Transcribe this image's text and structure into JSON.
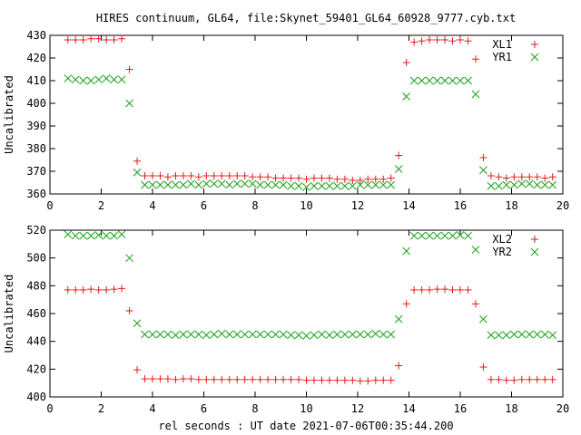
{
  "figure": {
    "title": "HIRES continuum, GL64, file:Skynet_59401_GL64_60928_9777.cyb.txt",
    "xlabel": "rel seconds : UT date 2021-07-06T00:35:44.200"
  },
  "colors": {
    "red": "#e41a1c",
    "green": "#1aa31a"
  },
  "chart_data": [
    {
      "type": "scatter",
      "ylabel": "Uncalibrated",
      "xlim": [
        0,
        20
      ],
      "ylim": [
        360,
        430
      ],
      "xticks": [
        0,
        2,
        4,
        6,
        8,
        10,
        12,
        14,
        16,
        18,
        20
      ],
      "yticks": [
        360,
        370,
        380,
        390,
        400,
        410,
        420,
        430
      ],
      "legend_position": "top-right",
      "series": [
        {
          "name": "XL1",
          "marker": "plus",
          "color": "#e41a1c",
          "x": [
            0.7,
            1.0,
            1.3,
            1.6,
            1.9,
            2.2,
            2.5,
            2.8,
            3.1,
            3.4,
            3.7,
            4.0,
            4.3,
            4.6,
            4.9,
            5.2,
            5.5,
            5.8,
            6.1,
            6.4,
            6.7,
            7.0,
            7.3,
            7.6,
            7.9,
            8.2,
            8.5,
            8.8,
            9.1,
            9.4,
            9.7,
            10.0,
            10.3,
            10.6,
            10.9,
            11.2,
            11.5,
            11.8,
            12.1,
            12.4,
            12.7,
            13.0,
            13.3,
            13.6,
            13.9,
            14.2,
            14.5,
            14.8,
            15.1,
            15.4,
            15.7,
            16.0,
            16.3,
            16.6,
            16.9,
            17.2,
            17.5,
            17.8,
            18.1,
            18.4,
            18.7,
            19.0,
            19.3,
            19.6
          ],
          "y": [
            428,
            428,
            428,
            428.5,
            428.5,
            428,
            428,
            428.5,
            415,
            374.5,
            368,
            368,
            368,
            367.5,
            368,
            368,
            368,
            367.5,
            368,
            368,
            368,
            368,
            368,
            368,
            367.5,
            367.5,
            367.5,
            367,
            367,
            367,
            367,
            366.5,
            367,
            367,
            367,
            366.5,
            366.5,
            366,
            366,
            366.5,
            366.5,
            366.5,
            367,
            377,
            418,
            427,
            427.5,
            428,
            428,
            428,
            427.5,
            428,
            427.5,
            419.5,
            376,
            368,
            367.5,
            367,
            367.5,
            367.5,
            367.5,
            367.5,
            367,
            367.5
          ]
        },
        {
          "name": "YR1",
          "marker": "cross",
          "color": "#1aa31a",
          "x": [
            0.7,
            1.0,
            1.3,
            1.6,
            1.9,
            2.2,
            2.5,
            2.8,
            3.1,
            3.4,
            3.7,
            4.0,
            4.3,
            4.6,
            4.9,
            5.2,
            5.5,
            5.8,
            6.1,
            6.4,
            6.7,
            7.0,
            7.3,
            7.6,
            7.9,
            8.2,
            8.5,
            8.8,
            9.1,
            9.4,
            9.7,
            10.0,
            10.3,
            10.6,
            10.9,
            11.2,
            11.5,
            11.8,
            12.1,
            12.4,
            12.7,
            13.0,
            13.3,
            13.6,
            13.9,
            14.2,
            14.5,
            14.8,
            15.1,
            15.4,
            15.7,
            16.0,
            16.3,
            16.6,
            16.9,
            17.2,
            17.5,
            17.8,
            18.1,
            18.4,
            18.7,
            19.0,
            19.3,
            19.6
          ],
          "y": [
            411,
            410.5,
            410,
            410,
            410.5,
            411,
            410.5,
            410.5,
            400,
            369.5,
            364,
            364,
            364,
            364,
            364,
            364,
            364.5,
            364,
            364.5,
            364.5,
            364.5,
            364,
            364.5,
            364.5,
            364.5,
            364,
            364,
            364,
            364,
            363.5,
            363.5,
            363,
            363.5,
            363.5,
            363.5,
            363.5,
            363.5,
            363.5,
            364,
            364,
            364,
            364,
            364,
            371,
            403,
            410,
            410,
            410,
            410,
            410,
            410,
            410,
            410,
            404,
            370.5,
            363.5,
            363.5,
            364,
            364,
            364.5,
            364.5,
            364,
            364,
            364
          ]
        }
      ]
    },
    {
      "type": "scatter",
      "ylabel": "Uncalibrated",
      "xlim": [
        0,
        20
      ],
      "ylim": [
        400,
        520
      ],
      "xticks": [
        0,
        2,
        4,
        6,
        8,
        10,
        12,
        14,
        16,
        18,
        20
      ],
      "yticks": [
        400,
        420,
        440,
        460,
        480,
        500,
        520
      ],
      "legend_position": "top-right",
      "series": [
        {
          "name": "XL2",
          "marker": "plus",
          "color": "#e41a1c",
          "x": [
            0.7,
            1.0,
            1.3,
            1.6,
            1.9,
            2.2,
            2.5,
            2.8,
            3.1,
            3.4,
            3.7,
            4.0,
            4.3,
            4.6,
            4.9,
            5.2,
            5.5,
            5.8,
            6.1,
            6.4,
            6.7,
            7.0,
            7.3,
            7.6,
            7.9,
            8.2,
            8.5,
            8.8,
            9.1,
            9.4,
            9.7,
            10.0,
            10.3,
            10.6,
            10.9,
            11.2,
            11.5,
            11.8,
            12.1,
            12.4,
            12.7,
            13.0,
            13.3,
            13.6,
            13.9,
            14.2,
            14.5,
            14.8,
            15.1,
            15.4,
            15.7,
            16.0,
            16.3,
            16.6,
            16.9,
            17.2,
            17.5,
            17.8,
            18.1,
            18.4,
            18.7,
            19.0,
            19.3,
            19.6
          ],
          "y": [
            477,
            477,
            477,
            477.5,
            477,
            477,
            477.5,
            478,
            462,
            419.5,
            413,
            413,
            413,
            413,
            412.5,
            413,
            413,
            412.5,
            412.5,
            412.5,
            412.5,
            412.5,
            412.5,
            412.5,
            412.5,
            412.5,
            412.5,
            412.5,
            412.5,
            412.5,
            412.5,
            412,
            412,
            412,
            412,
            412,
            412,
            412,
            411.5,
            411.5,
            412,
            412,
            412,
            422.5,
            467,
            477,
            477,
            477,
            477.5,
            477.5,
            477,
            477,
            477,
            467,
            421.5,
            412.5,
            412.5,
            412,
            412,
            412.5,
            412.5,
            412.5,
            412.5,
            412.5
          ]
        },
        {
          "name": "YR2",
          "marker": "cross",
          "color": "#1aa31a",
          "x": [
            0.7,
            1.0,
            1.3,
            1.6,
            1.9,
            2.2,
            2.5,
            2.8,
            3.1,
            3.4,
            3.7,
            4.0,
            4.3,
            4.6,
            4.9,
            5.2,
            5.5,
            5.8,
            6.1,
            6.4,
            6.7,
            7.0,
            7.3,
            7.6,
            7.9,
            8.2,
            8.5,
            8.8,
            9.1,
            9.4,
            9.7,
            10.0,
            10.3,
            10.6,
            10.9,
            11.2,
            11.5,
            11.8,
            12.1,
            12.4,
            12.7,
            13.0,
            13.3,
            13.6,
            13.9,
            14.2,
            14.5,
            14.8,
            15.1,
            15.4,
            15.7,
            16.0,
            16.3,
            16.6,
            16.9,
            17.2,
            17.5,
            17.8,
            18.1,
            18.4,
            18.7,
            19.0,
            19.3,
            19.6
          ],
          "y": [
            517,
            516,
            516,
            516,
            516.5,
            516,
            516,
            517,
            500,
            453,
            445,
            445,
            445,
            445,
            444.5,
            445,
            445,
            445,
            444.5,
            445,
            445.5,
            445,
            445,
            445,
            445,
            445,
            445,
            445,
            445,
            444.5,
            444.5,
            444,
            444.5,
            445,
            444.5,
            445,
            445,
            445,
            445,
            445,
            445.5,
            445,
            445,
            456,
            505,
            516,
            516,
            516,
            516,
            516,
            516,
            516.5,
            516,
            506,
            456,
            444.5,
            444.5,
            444.5,
            445,
            445,
            445,
            445,
            445,
            444.5
          ]
        }
      ]
    }
  ]
}
